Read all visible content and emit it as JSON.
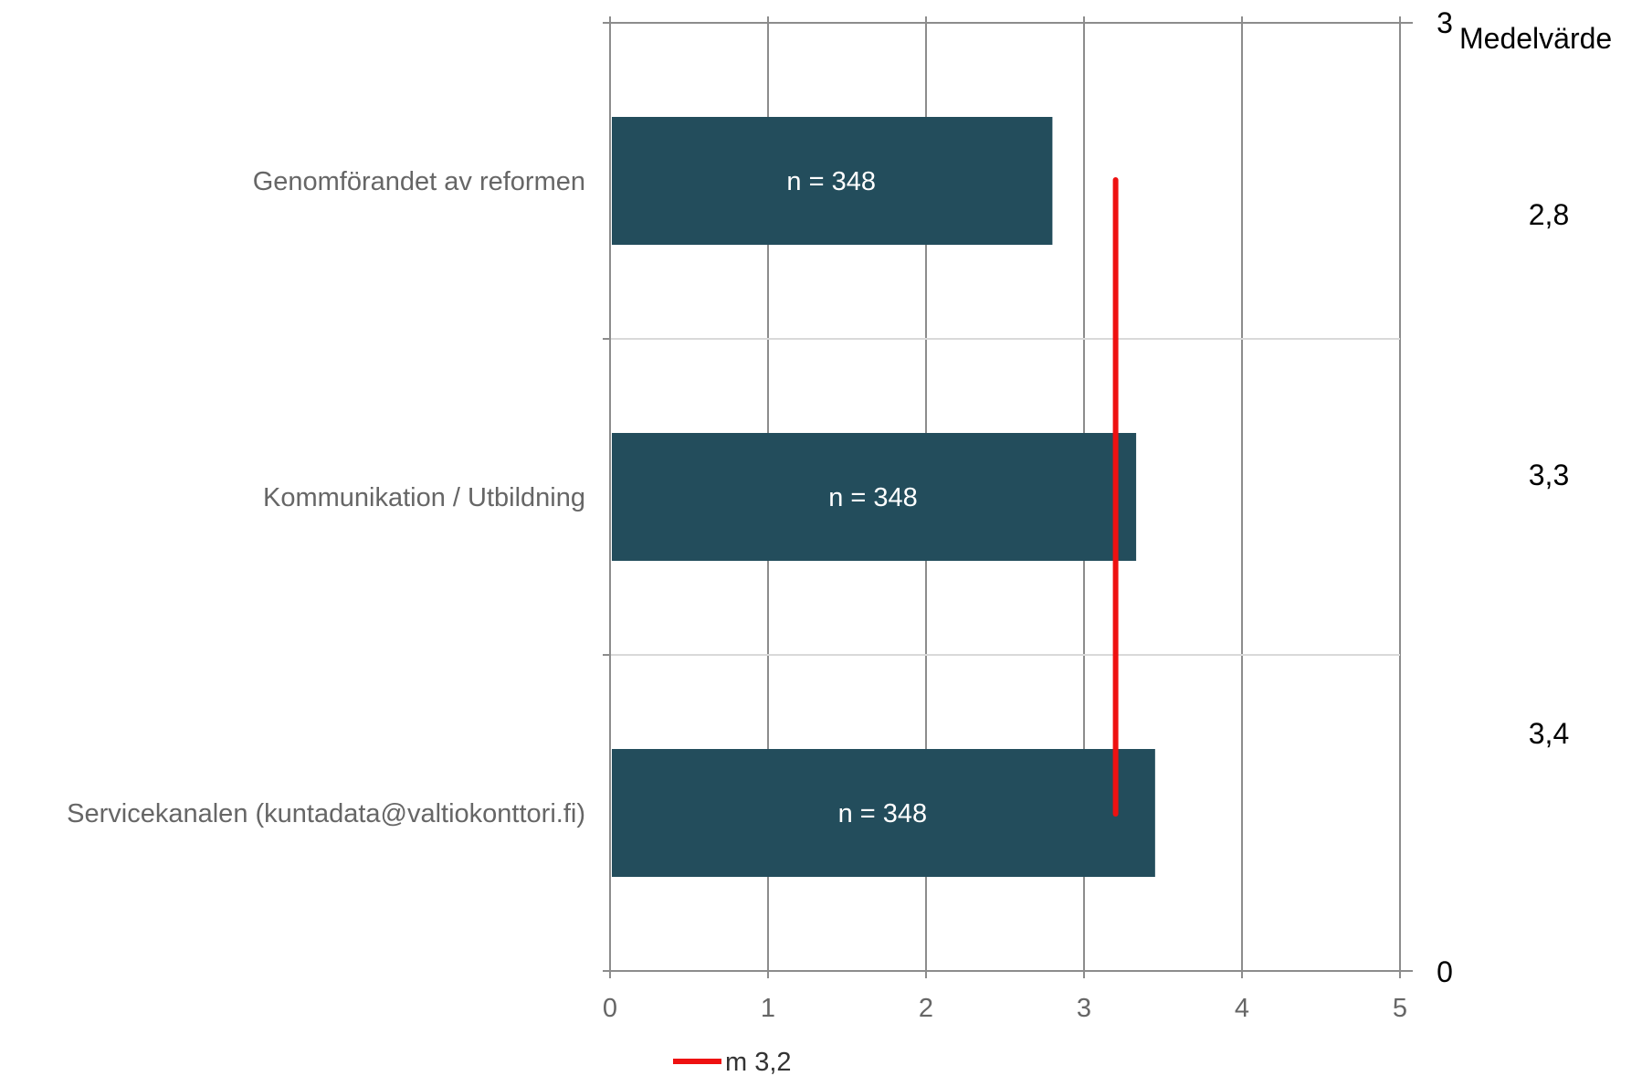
{
  "chart_data": {
    "type": "bar",
    "orientation": "horizontal",
    "categories": [
      "Genomförandet av reformen",
      "Kommunikation / Utbildning",
      "Servicekanalen (kuntadata@valtiokonttori.fi)"
    ],
    "values": [
      2.8,
      3.33,
      3.45
    ],
    "bar_labels": [
      "n = 348",
      "n = 348",
      "n = 348"
    ],
    "x_ticks": [
      "0",
      "1",
      "2",
      "3",
      "4",
      "5"
    ],
    "xlim": [
      0,
      5
    ],
    "grid": true,
    "bar_color": "#234d5c",
    "reference_line": {
      "value": 3.2,
      "label": "m 3,2",
      "color": "#ee1111"
    },
    "right_axis": {
      "title": "Medelvärde",
      "top_tick": "3",
      "bottom_tick": "0",
      "values": [
        "2,8",
        "3,3",
        "3,4"
      ]
    },
    "legend": {
      "position": "bottom",
      "label": "m 3,2"
    }
  }
}
